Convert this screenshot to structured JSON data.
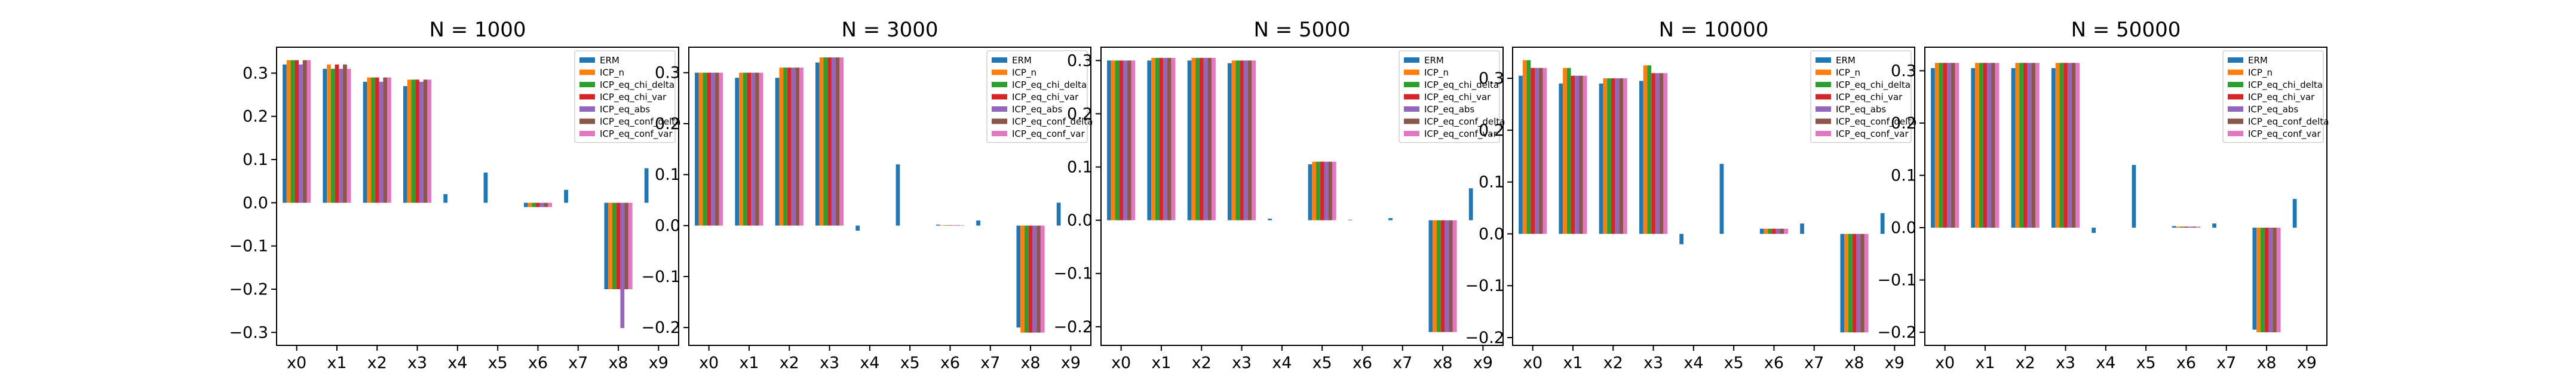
{
  "legend_labels": [
    "ERM",
    "ICP_n",
    "ICP_eq_chi_delta",
    "ICP_eq_chi_var",
    "ICP_eq_abs",
    "ICP_eq_conf_delta",
    "ICP_eq_conf_var"
  ],
  "colors": [
    "#1f77b4",
    "#ff7f0e",
    "#2ca02c",
    "#d62728",
    "#9467bd",
    "#8c564b",
    "#e377c2"
  ],
  "chart_data": [
    {
      "type": "bar",
      "title": "N = 1000",
      "legend_placement": "top-right",
      "grid": false,
      "categories": [
        "x0",
        "x1",
        "x2",
        "x3",
        "x4",
        "x5",
        "x6",
        "x7",
        "x8",
        "x9"
      ],
      "ylim": [
        -0.33,
        0.36
      ],
      "yticks": [
        -0.3,
        -0.2,
        -0.1,
        0.0,
        0.1,
        0.2,
        0.3
      ],
      "ytick_labels": [
        "−0.3",
        "−0.2",
        "−0.1",
        "0.0",
        "0.1",
        "0.2",
        "0.3"
      ],
      "series": [
        {
          "name": "ERM",
          "values": [
            0.32,
            0.31,
            0.28,
            0.27,
            0.02,
            0.07,
            -0.01,
            0.03,
            -0.2,
            0.08
          ]
        },
        {
          "name": "ICP_n",
          "values": [
            0.33,
            0.32,
            0.29,
            0.285,
            0,
            0,
            -0.01,
            0,
            -0.2,
            0
          ]
        },
        {
          "name": "ICP_eq_chi_delta",
          "values": [
            0.33,
            0.31,
            0.29,
            0.285,
            0,
            0,
            -0.01,
            0,
            -0.2,
            0
          ]
        },
        {
          "name": "ICP_eq_chi_var",
          "values": [
            0.33,
            0.32,
            0.29,
            0.285,
            0,
            0,
            -0.01,
            0,
            -0.2,
            0
          ]
        },
        {
          "name": "ICP_eq_abs",
          "values": [
            0.32,
            0.31,
            0.28,
            0.28,
            0,
            0,
            -0.01,
            0,
            -0.29,
            0
          ]
        },
        {
          "name": "ICP_eq_conf_delta",
          "values": [
            0.33,
            0.32,
            0.29,
            0.285,
            0,
            0,
            -0.01,
            0,
            -0.2,
            0
          ]
        },
        {
          "name": "ICP_eq_conf_var",
          "values": [
            0.33,
            0.31,
            0.29,
            0.285,
            0,
            0,
            -0.01,
            0,
            -0.2,
            0
          ]
        }
      ]
    },
    {
      "type": "bar",
      "title": "N = 3000",
      "legend_placement": "top-right",
      "grid": false,
      "categories": [
        "x0",
        "x1",
        "x2",
        "x3",
        "x4",
        "x5",
        "x6",
        "x7",
        "x8",
        "x9"
      ],
      "ylim": [
        -0.235,
        0.35
      ],
      "yticks": [
        -0.2,
        -0.1,
        0.0,
        0.1,
        0.2,
        0.3
      ],
      "ytick_labels": [
        "−0.2",
        "−0.1",
        "0.0",
        "0.1",
        "0.2",
        "0.3"
      ],
      "series": [
        {
          "name": "ERM",
          "values": [
            0.3,
            0.29,
            0.29,
            0.32,
            -0.01,
            0.12,
            0.002,
            0.01,
            -0.2,
            0.045
          ]
        },
        {
          "name": "ICP_n",
          "values": [
            0.3,
            0.3,
            0.31,
            0.33,
            0,
            0,
            0.001,
            0,
            -0.21,
            0
          ]
        },
        {
          "name": "ICP_eq_chi_delta",
          "values": [
            0.3,
            0.3,
            0.31,
            0.33,
            0,
            0,
            0.001,
            0,
            -0.21,
            0
          ]
        },
        {
          "name": "ICP_eq_chi_var",
          "values": [
            0.3,
            0.3,
            0.31,
            0.33,
            0,
            0,
            0.001,
            0,
            -0.21,
            0
          ]
        },
        {
          "name": "ICP_eq_abs",
          "values": [
            0.3,
            0.3,
            0.31,
            0.33,
            0,
            0,
            0.001,
            0,
            -0.21,
            0
          ]
        },
        {
          "name": "ICP_eq_conf_delta",
          "values": [
            0.3,
            0.3,
            0.31,
            0.33,
            0,
            0,
            0.001,
            0,
            -0.21,
            0
          ]
        },
        {
          "name": "ICP_eq_conf_var",
          "values": [
            0.3,
            0.3,
            0.31,
            0.33,
            0,
            0,
            0.001,
            0,
            -0.21,
            0
          ]
        }
      ]
    },
    {
      "type": "bar",
      "title": "N = 5000",
      "legend_placement": "top-right",
      "grid": false,
      "categories": [
        "x0",
        "x1",
        "x2",
        "x3",
        "x4",
        "x5",
        "x6",
        "x7",
        "x8",
        "x9"
      ],
      "ylim": [
        -0.235,
        0.325
      ],
      "yticks": [
        -0.2,
        -0.1,
        0.0,
        0.1,
        0.2,
        0.3
      ],
      "ytick_labels": [
        "−0.2",
        "−0.1",
        "0.0",
        "0.1",
        "0.2",
        "0.3"
      ],
      "series": [
        {
          "name": "ERM",
          "values": [
            0.3,
            0.3,
            0.3,
            0.295,
            0.003,
            0.105,
            0.001,
            0.004,
            -0.21,
            0.06
          ]
        },
        {
          "name": "ICP_n",
          "values": [
            0.3,
            0.305,
            0.305,
            0.3,
            0,
            0.11,
            0,
            0,
            -0.21,
            0
          ]
        },
        {
          "name": "ICP_eq_chi_delta",
          "values": [
            0.3,
            0.305,
            0.305,
            0.3,
            0,
            0.11,
            0,
            0,
            -0.21,
            0
          ]
        },
        {
          "name": "ICP_eq_chi_var",
          "values": [
            0.3,
            0.305,
            0.305,
            0.3,
            0,
            0.11,
            0,
            0,
            -0.21,
            0
          ]
        },
        {
          "name": "ICP_eq_abs",
          "values": [
            0.3,
            0.305,
            0.305,
            0.3,
            0,
            0.11,
            0,
            0,
            -0.21,
            0
          ]
        },
        {
          "name": "ICP_eq_conf_delta",
          "values": [
            0.3,
            0.305,
            0.305,
            0.3,
            0,
            0.11,
            0,
            0,
            -0.21,
            0
          ]
        },
        {
          "name": "ICP_eq_conf_var",
          "values": [
            0.3,
            0.305,
            0.305,
            0.3,
            0,
            0.11,
            0,
            0,
            -0.21,
            0
          ]
        }
      ]
    },
    {
      "type": "bar",
      "title": "N = 10000",
      "legend_placement": "top-right",
      "grid": false,
      "categories": [
        "x0",
        "x1",
        "x2",
        "x3",
        "x4",
        "x5",
        "x6",
        "x7",
        "x8",
        "x9"
      ],
      "ylim": [
        -0.215,
        0.36
      ],
      "yticks": [
        -0.2,
        -0.1,
        0.0,
        0.1,
        0.2,
        0.3
      ],
      "ytick_labels": [
        "−0.2",
        "−0.1",
        "0.0",
        "0.1",
        "0.2",
        "0.3"
      ],
      "series": [
        {
          "name": "ERM",
          "values": [
            0.305,
            0.29,
            0.29,
            0.295,
            -0.02,
            0.135,
            0.01,
            0.02,
            -0.19,
            0.04
          ]
        },
        {
          "name": "ICP_n",
          "values": [
            0.335,
            0.32,
            0.3,
            0.325,
            0,
            0,
            0.01,
            0,
            -0.19,
            0
          ]
        },
        {
          "name": "ICP_eq_chi_delta",
          "values": [
            0.335,
            0.32,
            0.3,
            0.325,
            0,
            0,
            0.01,
            0,
            -0.19,
            0
          ]
        },
        {
          "name": "ICP_eq_chi_var",
          "values": [
            0.32,
            0.305,
            0.3,
            0.31,
            0,
            0,
            0.01,
            0,
            -0.19,
            0
          ]
        },
        {
          "name": "ICP_eq_abs",
          "values": [
            0.32,
            0.305,
            0.3,
            0.31,
            0,
            0,
            0.01,
            0,
            -0.19,
            0
          ]
        },
        {
          "name": "ICP_eq_conf_delta",
          "values": [
            0.32,
            0.305,
            0.3,
            0.31,
            0,
            0,
            0.01,
            0,
            -0.19,
            0
          ]
        },
        {
          "name": "ICP_eq_conf_var",
          "values": [
            0.32,
            0.305,
            0.3,
            0.31,
            0,
            0,
            0.01,
            0,
            -0.19,
            0
          ]
        }
      ]
    },
    {
      "type": "bar",
      "title": "N = 50000",
      "legend_placement": "top-right",
      "grid": false,
      "categories": [
        "x0",
        "x1",
        "x2",
        "x3",
        "x4",
        "x5",
        "x6",
        "x7",
        "x8",
        "x9"
      ],
      "ylim": [
        -0.225,
        0.345
      ],
      "yticks": [
        -0.2,
        -0.1,
        0.0,
        0.1,
        0.2,
        0.3
      ],
      "ytick_labels": [
        "−0.2",
        "−0.1",
        "0.0",
        "0.1",
        "0.2",
        "0.3"
      ],
      "series": [
        {
          "name": "ERM",
          "values": [
            0.305,
            0.305,
            0.305,
            0.305,
            -0.01,
            0.12,
            0.003,
            0.008,
            -0.195,
            0.055
          ]
        },
        {
          "name": "ICP_n",
          "values": [
            0.315,
            0.315,
            0.315,
            0.315,
            0,
            0,
            0.002,
            0,
            -0.2,
            0
          ]
        },
        {
          "name": "ICP_eq_chi_delta",
          "values": [
            0.315,
            0.315,
            0.315,
            0.315,
            0,
            0,
            0.002,
            0,
            -0.2,
            0
          ]
        },
        {
          "name": "ICP_eq_chi_var",
          "values": [
            0.315,
            0.315,
            0.315,
            0.315,
            0,
            0,
            0.002,
            0,
            -0.2,
            0
          ]
        },
        {
          "name": "ICP_eq_abs",
          "values": [
            0.315,
            0.315,
            0.315,
            0.315,
            0,
            0,
            0.002,
            0,
            -0.2,
            0
          ]
        },
        {
          "name": "ICP_eq_conf_delta",
          "values": [
            0.315,
            0.315,
            0.315,
            0.315,
            0,
            0,
            0.002,
            0,
            -0.2,
            0
          ]
        },
        {
          "name": "ICP_eq_conf_var",
          "values": [
            0.315,
            0.315,
            0.315,
            0.315,
            0,
            0,
            0.002,
            0,
            -0.2,
            0
          ]
        }
      ]
    }
  ]
}
